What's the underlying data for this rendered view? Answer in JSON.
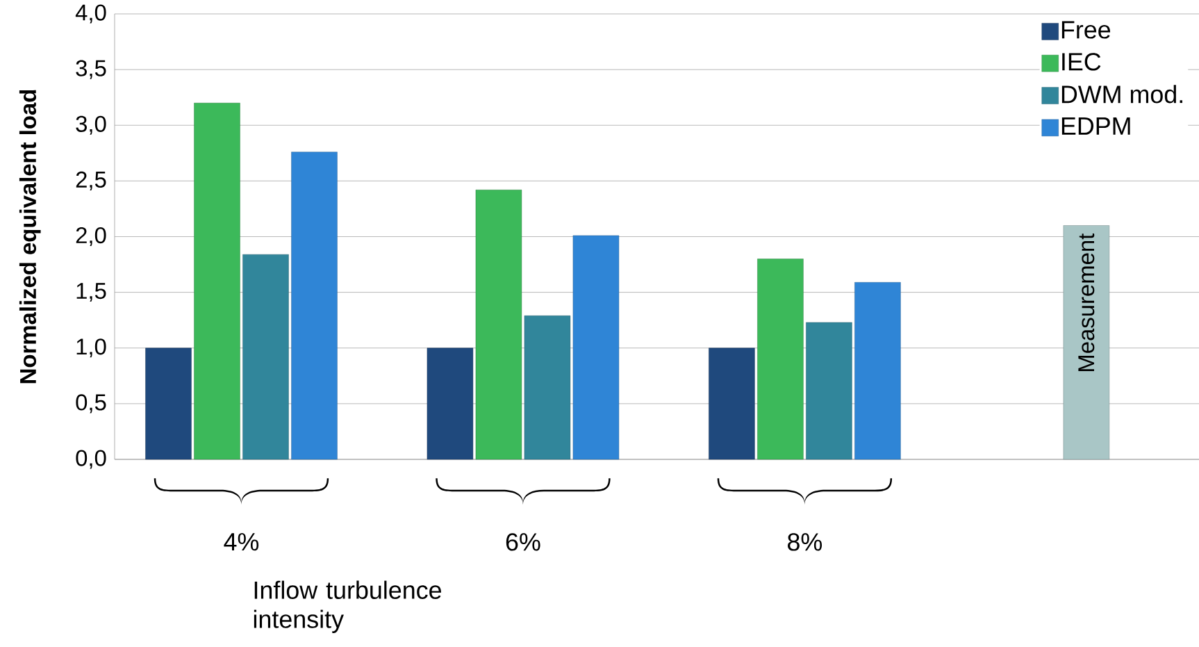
{
  "chart_data": {
    "type": "bar",
    "ylabel": "Normalized equivalent load",
    "xlabel": "Inflow turbulence intensity",
    "categories": [
      "4%",
      "6%",
      "8%",
      null
    ],
    "series": [
      {
        "name": "Free",
        "color": "#1f497d",
        "values": [
          1.0,
          1.0,
          1.0,
          null
        ]
      },
      {
        "name": "IEC",
        "color": "#3cb95a",
        "values": [
          3.2,
          2.42,
          1.8,
          null
        ]
      },
      {
        "name": "DWM mod.",
        "color": "#31869b",
        "values": [
          1.84,
          1.29,
          1.23,
          null
        ]
      },
      {
        "name": "EDPM",
        "color": "#2f85d6",
        "values": [
          2.76,
          2.01,
          1.59,
          null
        ]
      },
      {
        "name": "Measurement",
        "color": "#a9c6c6",
        "values": [
          null,
          null,
          null,
          2.1
        ]
      }
    ],
    "ylim": [
      0,
      4
    ],
    "yticks": [
      {
        "value": 0,
        "label": "0,0"
      },
      {
        "value": 0.5,
        "label": "0,5"
      },
      {
        "value": 1,
        "label": "1,0"
      },
      {
        "value": 1.5,
        "label": "1,5"
      },
      {
        "value": 2,
        "label": "2,0"
      },
      {
        "value": 2.5,
        "label": "2,5"
      },
      {
        "value": 3,
        "label": "3,0"
      },
      {
        "value": 3.5,
        "label": "3,5"
      },
      {
        "value": 4,
        "label": "4,0"
      }
    ],
    "grid": "y",
    "legend": "top right"
  }
}
